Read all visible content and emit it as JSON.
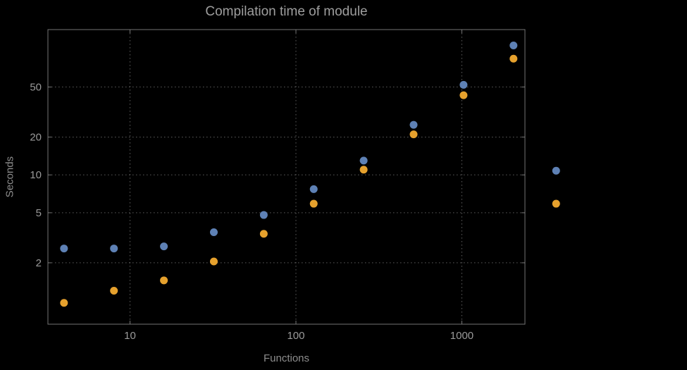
{
  "colors": {
    "background": "#000000",
    "frame": "#757575",
    "grid": "#5e5e5e",
    "title": "#9e9e9e",
    "axis_labels": "#8d8d8d",
    "tick_labels": "#9a9a9a",
    "series_blue": "#5e81b5",
    "series_orange": "#e6a12d"
  },
  "chart_data": {
    "type": "scatter",
    "title": "Compilation time of module",
    "xlabel": "Functions",
    "ylabel": "Seconds",
    "x_scale": "log",
    "y_scale": "log",
    "xlim": [
      3.2,
      2400
    ],
    "ylim": [
      0.65,
      143
    ],
    "x_ticks": [
      10,
      100,
      1000
    ],
    "y_ticks": [
      2,
      5,
      10,
      20,
      50
    ],
    "grid": true,
    "grid_style": "dotted",
    "legend": "none",
    "marker_diameter_px": 11,
    "series": [
      {
        "name": "blue",
        "color": "#5e81b5",
        "x": [
          4,
          8,
          16,
          32,
          64,
          128,
          256,
          512,
          1024,
          2048,
          3700
        ],
        "y": [
          2.6,
          2.6,
          2.7,
          3.5,
          4.8,
          7.7,
          13,
          25,
          52,
          107,
          10.8
        ]
      },
      {
        "name": "orange",
        "color": "#e6a12d",
        "x": [
          4,
          8,
          16,
          32,
          64,
          128,
          256,
          512,
          1024,
          2048,
          3700
        ],
        "y": [
          0.96,
          1.2,
          1.45,
          2.05,
          3.4,
          5.9,
          11,
          21,
          43,
          84,
          5.9
        ]
      }
    ]
  }
}
